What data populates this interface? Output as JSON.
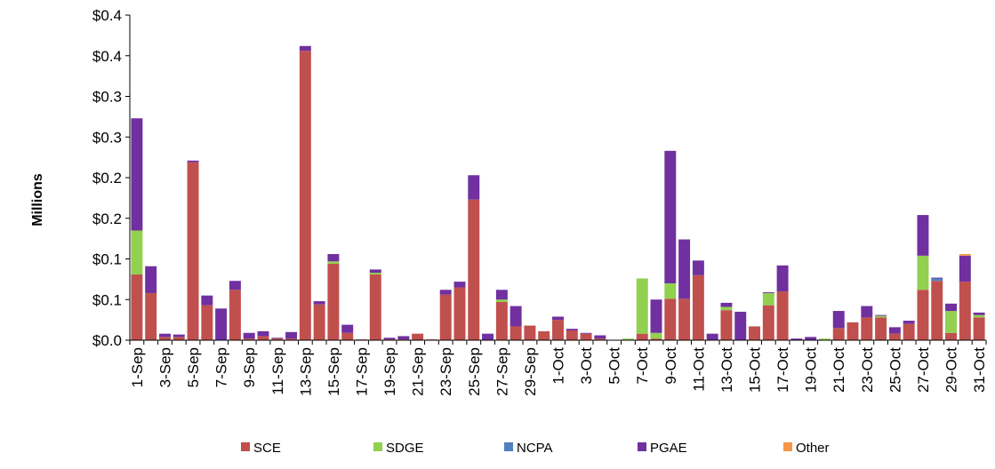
{
  "chart_data": {
    "type": "bar",
    "stacked": true,
    "ylabel": "Millions",
    "xlabel": "",
    "title": "",
    "ylim": [
      0,
      0.4
    ],
    "y_ticks": [
      0,
      0.05,
      0.1,
      0.15,
      0.2,
      0.25,
      0.3,
      0.35,
      0.4
    ],
    "y_tick_labels": [
      "$0.0",
      "$0.1",
      "$0.1",
      "$0.2",
      "$0.2",
      "$0.3",
      "$0.3",
      "$0.4",
      "$0.4"
    ],
    "grid": false,
    "legend_position": "bottom",
    "categories": [
      "1-Sep",
      "2-Sep",
      "3-Sep",
      "4-Sep",
      "5-Sep",
      "6-Sep",
      "7-Sep",
      "8-Sep",
      "9-Sep",
      "10-Sep",
      "11-Sep",
      "12-Sep",
      "13-Sep",
      "14-Sep",
      "15-Sep",
      "16-Sep",
      "17-Sep",
      "18-Sep",
      "19-Sep",
      "20-Sep",
      "21-Sep",
      "22-Sep",
      "23-Sep",
      "24-Sep",
      "25-Sep",
      "26-Sep",
      "27-Sep",
      "28-Sep",
      "29-Sep",
      "30-Sep",
      "1-Oct",
      "2-Oct",
      "3-Oct",
      "4-Oct",
      "5-Oct",
      "6-Oct",
      "7-Oct",
      "8-Oct",
      "9-Oct",
      "10-Oct",
      "11-Oct",
      "12-Oct",
      "13-Oct",
      "14-Oct",
      "15-Oct",
      "16-Oct",
      "17-Oct",
      "18-Oct",
      "19-Oct",
      "20-Oct",
      "21-Oct",
      "22-Oct",
      "23-Oct",
      "24-Oct",
      "25-Oct",
      "26-Oct",
      "27-Oct",
      "28-Oct",
      "29-Oct",
      "30-Oct",
      "31-Oct"
    ],
    "x_tick_labels": [
      "1-Sep",
      "3-Sep",
      "5-Sep",
      "7-Sep",
      "9-Sep",
      "11-Sep",
      "13-Sep",
      "15-Sep",
      "17-Sep",
      "19-Sep",
      "21-Sep",
      "23-Sep",
      "25-Sep",
      "27-Sep",
      "29-Sep",
      "1-Oct",
      "3-Oct",
      "5-Oct",
      "7-Oct",
      "9-Oct",
      "11-Oct",
      "13-Oct",
      "15-Oct",
      "17-Oct",
      "19-Oct",
      "21-Oct",
      "23-Oct",
      "25-Oct",
      "27-Oct",
      "29-Oct",
      "31-Oct"
    ],
    "series": [
      {
        "name": "SCE",
        "color": "#C0504D",
        "values": [
          0.081,
          0.058,
          0.004,
          0.004,
          0.219,
          0.043,
          0.0,
          0.062,
          0.002,
          0.005,
          0.002,
          0.002,
          0.356,
          0.044,
          0.094,
          0.009,
          0.001,
          0.081,
          0.001,
          0.001,
          0.008,
          0.001,
          0.056,
          0.065,
          0.173,
          0.0,
          0.047,
          0.017,
          0.018,
          0.011,
          0.025,
          0.012,
          0.008,
          0.002,
          0.0,
          0.0,
          0.008,
          0.002,
          0.051,
          0.051,
          0.08,
          0.0,
          0.037,
          0.0,
          0.017,
          0.043,
          0.06,
          0.0,
          0.0,
          0.0,
          0.015,
          0.022,
          0.028,
          0.028,
          0.008,
          0.02,
          0.062,
          0.073,
          0.009,
          0.072,
          0.028
        ]
      },
      {
        "name": "SDGE",
        "color": "#92D050",
        "values": [
          0.054,
          0.0,
          0.0,
          0.0,
          0.0,
          0.0,
          0.0,
          0.0,
          0.0,
          0.0,
          0.0,
          0.0,
          0.0,
          0.0,
          0.003,
          0.0,
          0.0,
          0.002,
          0.0,
          0.0,
          0.0,
          0.0,
          0.0,
          0.0,
          0.0,
          0.0,
          0.003,
          0.0,
          0.0,
          0.0,
          0.0,
          0.0,
          0.0,
          0.0,
          0.0,
          0.002,
          0.068,
          0.007,
          0.019,
          0.0,
          0.0,
          0.0,
          0.004,
          0.0,
          0.0,
          0.015,
          0.0,
          0.0,
          0.0,
          0.002,
          0.0,
          0.0,
          0.0,
          0.002,
          0.0,
          0.0,
          0.042,
          0.0,
          0.027,
          0.0,
          0.003
        ]
      },
      {
        "name": "NCPA",
        "color": "#4F81BD",
        "values": [
          0.0,
          0.0,
          0.0,
          0.0,
          0.0,
          0.0,
          0.0,
          0.0,
          0.0,
          0.0,
          0.0,
          0.0,
          0.0,
          0.0,
          0.0,
          0.0,
          0.0,
          0.0,
          0.0,
          0.0,
          0.0,
          0.0,
          0.0,
          0.0,
          0.0,
          0.0,
          0.0,
          0.0,
          0.0,
          0.0,
          0.0,
          0.0,
          0.0,
          0.0,
          0.0,
          0.0,
          0.0,
          0.0,
          0.0,
          0.0,
          0.0,
          0.0,
          0.0,
          0.0,
          0.0,
          0.0,
          0.0,
          0.0,
          0.0,
          0.0,
          0.0,
          0.0,
          0.0,
          0.0,
          0.0,
          0.0,
          0.0,
          0.003,
          0.0,
          0.0,
          0.0
        ]
      },
      {
        "name": "PGAE",
        "color": "#7030A0",
        "values": [
          0.138,
          0.033,
          0.004,
          0.003,
          0.002,
          0.012,
          0.039,
          0.011,
          0.007,
          0.006,
          0.001,
          0.008,
          0.006,
          0.004,
          0.009,
          0.01,
          0.0,
          0.004,
          0.002,
          0.004,
          0.0,
          0.0,
          0.006,
          0.007,
          0.03,
          0.008,
          0.012,
          0.025,
          0.0,
          0.0,
          0.004,
          0.002,
          0.001,
          0.004,
          0.0,
          0.0,
          0.0,
          0.041,
          0.163,
          0.073,
          0.018,
          0.008,
          0.005,
          0.035,
          0.0,
          0.001,
          0.032,
          0.002,
          0.004,
          0.0,
          0.021,
          0.0,
          0.014,
          0.001,
          0.008,
          0.004,
          0.05,
          0.001,
          0.009,
          0.032,
          0.003
        ]
      },
      {
        "name": "Other",
        "color": "#F79646",
        "values": [
          0.0,
          0.0,
          0.0,
          0.0,
          0.0,
          0.0,
          0.0,
          0.0,
          0.0,
          0.0,
          0.0,
          0.0,
          0.0,
          0.0,
          0.0,
          0.0,
          0.0,
          0.0,
          0.0,
          0.0,
          0.0,
          0.0,
          0.0,
          0.0,
          0.0,
          0.0,
          0.0,
          0.0,
          0.0,
          0.0,
          0.0,
          0.0,
          0.0,
          0.0,
          0.0,
          0.0,
          0.0,
          0.0,
          0.0,
          0.0,
          0.0,
          0.0,
          0.0,
          0.0,
          0.0,
          0.0,
          0.0,
          0.0,
          0.0,
          0.0,
          0.0,
          0.0,
          0.0,
          0.0,
          0.0,
          0.0,
          0.0,
          0.0,
          0.0,
          0.002,
          0.0
        ]
      }
    ]
  }
}
